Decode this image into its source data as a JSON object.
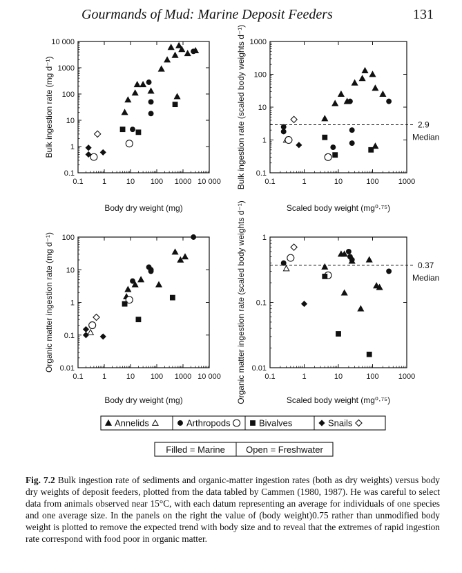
{
  "header": {
    "running_title": "Gourmands of Mud: Marine Deposit Feeders",
    "page_number": "131"
  },
  "legend": {
    "groups": [
      {
        "label": "Annelids",
        "filled": "triangle",
        "open": "triangle"
      },
      {
        "label": "Arthropods",
        "filled": "circle",
        "open": "circle"
      },
      {
        "label": "Bivalves",
        "filled": "square",
        "open": "none"
      },
      {
        "label": "Snails",
        "filled": "diamond",
        "open": "diamond"
      }
    ],
    "key_filled": "Filled = Marine",
    "key_open": "Open = Freshwater"
  },
  "caption": {
    "fig_label": "Fig. 7.2",
    "text": "Bulk ingestion rate of sediments and organic-matter ingestion rates (both as dry weights) versus body dry weights of deposit feeders, plotted from the data tabled by Cammen (1980, 1987). He was careful to select data from animals observed near 15°C, with each datum representing an average for individuals of one species and one average size. In the panels on the right the value of (body weight)0.75 rather than unmodified body weight is plotted to remove the expected trend with body size and to reveal that the extremes of rapid ingestion rate correspond with food poor in organic matter."
  },
  "chart_data": [
    {
      "type": "scatter",
      "id": "bulk_vs_body",
      "ylabel": "Bulk ingestion rate (mg d⁻¹)",
      "xlabel": "Body dry weight (mg)",
      "xscale": "log",
      "yscale": "log",
      "xlim": [
        0.1,
        10000
      ],
      "ylim": [
        0.1,
        10000
      ],
      "xticks": [
        "0.1",
        "1",
        "10",
        "100",
        "1000",
        "10 000"
      ],
      "yticks": [
        "0.1",
        "1",
        "10",
        "100",
        "1000",
        "10 000"
      ],
      "series": [
        {
          "name": "Annelids",
          "marker": "triangle",
          "filled": true,
          "points": [
            [
              6,
              20
            ],
            [
              8,
              60
            ],
            [
              15,
              110
            ],
            [
              18,
              230
            ],
            [
              30,
              230
            ],
            [
              60,
              130
            ],
            [
              150,
              900
            ],
            [
              250,
              2000
            ],
            [
              350,
              6000
            ],
            [
              500,
              3000
            ],
            [
              700,
              7000
            ],
            [
              900,
              5000
            ],
            [
              1500,
              3500
            ],
            [
              3000,
              4500
            ],
            [
              600,
              80
            ]
          ]
        },
        {
          "name": "Arthropods",
          "marker": "circle",
          "filled": true,
          "points": [
            [
              12,
              4.5
            ],
            [
              50,
              280
            ],
            [
              60,
              50
            ],
            [
              60,
              18
            ],
            [
              2500,
              4200
            ]
          ]
        },
        {
          "name": "Arthropods",
          "marker": "circle",
          "filled": false,
          "points": [
            [
              0.4,
              0.4
            ],
            [
              9,
              1.3
            ]
          ]
        },
        {
          "name": "Bivalves",
          "marker": "square",
          "filled": true,
          "points": [
            [
              5,
              4.5
            ],
            [
              20,
              3.5
            ],
            [
              500,
              40
            ]
          ]
        },
        {
          "name": "Snails",
          "marker": "diamond",
          "filled": true,
          "points": [
            [
              0.25,
              0.9
            ],
            [
              0.25,
              0.5
            ],
            [
              0.9,
              0.6
            ]
          ]
        },
        {
          "name": "Snails",
          "marker": "diamond",
          "filled": false,
          "points": [
            [
              0.55,
              3
            ]
          ]
        }
      ]
    },
    {
      "type": "scatter",
      "id": "bulk_scaled",
      "ylabel": "Bulk ingestion rate (scaled body weights d⁻¹)",
      "xlabel": "Scaled body weight (mg⁰·⁷⁵)",
      "xscale": "log",
      "yscale": "log",
      "xlim": [
        0.1,
        1000
      ],
      "ylim": [
        0.1,
        1000
      ],
      "xticks": [
        "0.1",
        "1",
        "10",
        "100",
        "1000"
      ],
      "yticks": [
        "0.1",
        "1",
        "10",
        "100",
        "1000"
      ],
      "median": {
        "value": 2.9,
        "label": "2.9",
        "text": "Median"
      },
      "series": [
        {
          "name": "Annelids",
          "marker": "triangle",
          "filled": true,
          "points": [
            [
              4,
              4.5
            ],
            [
              8,
              13
            ],
            [
              12,
              25
            ],
            [
              18,
              15
            ],
            [
              30,
              55
            ],
            [
              50,
              75
            ],
            [
              60,
              130
            ],
            [
              100,
              100
            ],
            [
              120,
              38
            ],
            [
              200,
              25
            ],
            [
              120,
              0.65
            ]
          ]
        },
        {
          "name": "Annelids",
          "marker": "triangle",
          "filled": false,
          "points": [
            [
              0.3,
              1.0
            ]
          ]
        },
        {
          "name": "Arthropods",
          "marker": "circle",
          "filled": true,
          "points": [
            [
              0.25,
              2.5
            ],
            [
              0.25,
              1.8
            ],
            [
              7,
              0.6
            ],
            [
              22,
              15
            ],
            [
              25,
              2
            ],
            [
              25,
              0.8
            ],
            [
              300,
              15
            ]
          ]
        },
        {
          "name": "Arthropods",
          "marker": "circle",
          "filled": false,
          "points": [
            [
              0.35,
              1
            ],
            [
              5,
              0.3
            ]
          ]
        },
        {
          "name": "Bivalves",
          "marker": "square",
          "filled": true,
          "points": [
            [
              4,
              1.2
            ],
            [
              8,
              0.35
            ],
            [
              90,
              0.5
            ]
          ]
        },
        {
          "name": "Snails",
          "marker": "diamond",
          "filled": true,
          "points": [
            [
              0.7,
              0.7
            ]
          ]
        },
        {
          "name": "Snails",
          "marker": "diamond",
          "filled": false,
          "points": [
            [
              0.5,
              4.2
            ]
          ]
        }
      ]
    },
    {
      "type": "scatter",
      "id": "organic_vs_body",
      "ylabel": "Organic matter ingestion rate (mg d⁻¹)",
      "xlabel": "Body dry weight (mg)",
      "xscale": "log",
      "yscale": "log",
      "xlim": [
        0.1,
        10000
      ],
      "ylim": [
        0.01,
        100
      ],
      "xticks": [
        "0.1",
        "1",
        "10",
        "100",
        "1000",
        "10 000"
      ],
      "yticks": [
        "0.01",
        "0.1",
        "1",
        "10",
        "100"
      ],
      "series": [
        {
          "name": "Annelids",
          "marker": "triangle",
          "filled": true,
          "points": [
            [
              7,
              1.5
            ],
            [
              8,
              2.5
            ],
            [
              15,
              3.5
            ],
            [
              25,
              5
            ],
            [
              120,
              3.5
            ],
            [
              500,
              35
            ],
            [
              800,
              20
            ],
            [
              1200,
              25
            ]
          ]
        },
        {
          "name": "Annelids",
          "marker": "triangle",
          "filled": false,
          "points": [
            [
              0.3,
              0.12
            ]
          ]
        },
        {
          "name": "Arthropods",
          "marker": "circle",
          "filled": true,
          "points": [
            [
              12,
              4.5
            ],
            [
              50,
              12
            ],
            [
              60,
              10
            ],
            [
              60,
              9
            ],
            [
              2500,
              100
            ]
          ]
        },
        {
          "name": "Arthropods",
          "marker": "circle",
          "filled": false,
          "points": [
            [
              0.35,
              0.2
            ],
            [
              9,
              1.2
            ]
          ]
        },
        {
          "name": "Bivalves",
          "marker": "square",
          "filled": true,
          "points": [
            [
              6,
              0.9
            ],
            [
              20,
              0.3
            ],
            [
              400,
              1.4
            ]
          ]
        },
        {
          "name": "Snails",
          "marker": "diamond",
          "filled": true,
          "points": [
            [
              0.2,
              0.15
            ],
            [
              0.2,
              0.1
            ],
            [
              0.9,
              0.09
            ]
          ]
        },
        {
          "name": "Snails",
          "marker": "diamond",
          "filled": false,
          "points": [
            [
              0.5,
              0.35
            ]
          ]
        }
      ]
    },
    {
      "type": "scatter",
      "id": "organic_scaled",
      "ylabel": "Organic matter ingestion rate (scaled body weights d⁻¹)",
      "xlabel": "Scaled body weight (mg⁰·⁷⁵)",
      "xscale": "log",
      "yscale": "log",
      "xlim": [
        0.1,
        1000
      ],
      "ylim": [
        0.01,
        1
      ],
      "xticks": [
        "0.1",
        "1",
        "10",
        "100",
        "1000"
      ],
      "yticks": [
        "0.01",
        "0.1",
        "1"
      ],
      "median": {
        "value": 0.37,
        "label": "0.37",
        "text": "Median"
      },
      "series": [
        {
          "name": "Annelids",
          "marker": "triangle",
          "filled": true,
          "points": [
            [
              4,
              0.35
            ],
            [
              12,
              0.55
            ],
            [
              15,
              0.55
            ],
            [
              15,
              0.14
            ],
            [
              25,
              0.43
            ],
            [
              45,
              0.08
            ],
            [
              80,
              0.45
            ],
            [
              130,
              0.18
            ],
            [
              160,
              0.17
            ]
          ]
        },
        {
          "name": "Annelids",
          "marker": "triangle",
          "filled": false,
          "points": [
            [
              0.3,
              0.33
            ]
          ]
        },
        {
          "name": "Arthropods",
          "marker": "circle",
          "filled": true,
          "points": [
            [
              0.25,
              0.4
            ],
            [
              20,
              0.6
            ],
            [
              22,
              0.5
            ],
            [
              25,
              0.45
            ],
            [
              300,
              0.3
            ]
          ]
        },
        {
          "name": "Arthropods",
          "marker": "circle",
          "filled": false,
          "points": [
            [
              0.4,
              0.48
            ],
            [
              5,
              0.26
            ]
          ]
        },
        {
          "name": "Bivalves",
          "marker": "square",
          "filled": true,
          "points": [
            [
              4,
              0.25
            ],
            [
              10,
              0.033
            ],
            [
              80,
              0.016
            ]
          ]
        },
        {
          "name": "Snails",
          "marker": "diamond",
          "filled": true,
          "points": [
            [
              1,
              0.095
            ]
          ]
        },
        {
          "name": "Snails",
          "marker": "diamond",
          "filled": false,
          "points": [
            [
              0.5,
              0.7
            ]
          ]
        }
      ]
    }
  ]
}
